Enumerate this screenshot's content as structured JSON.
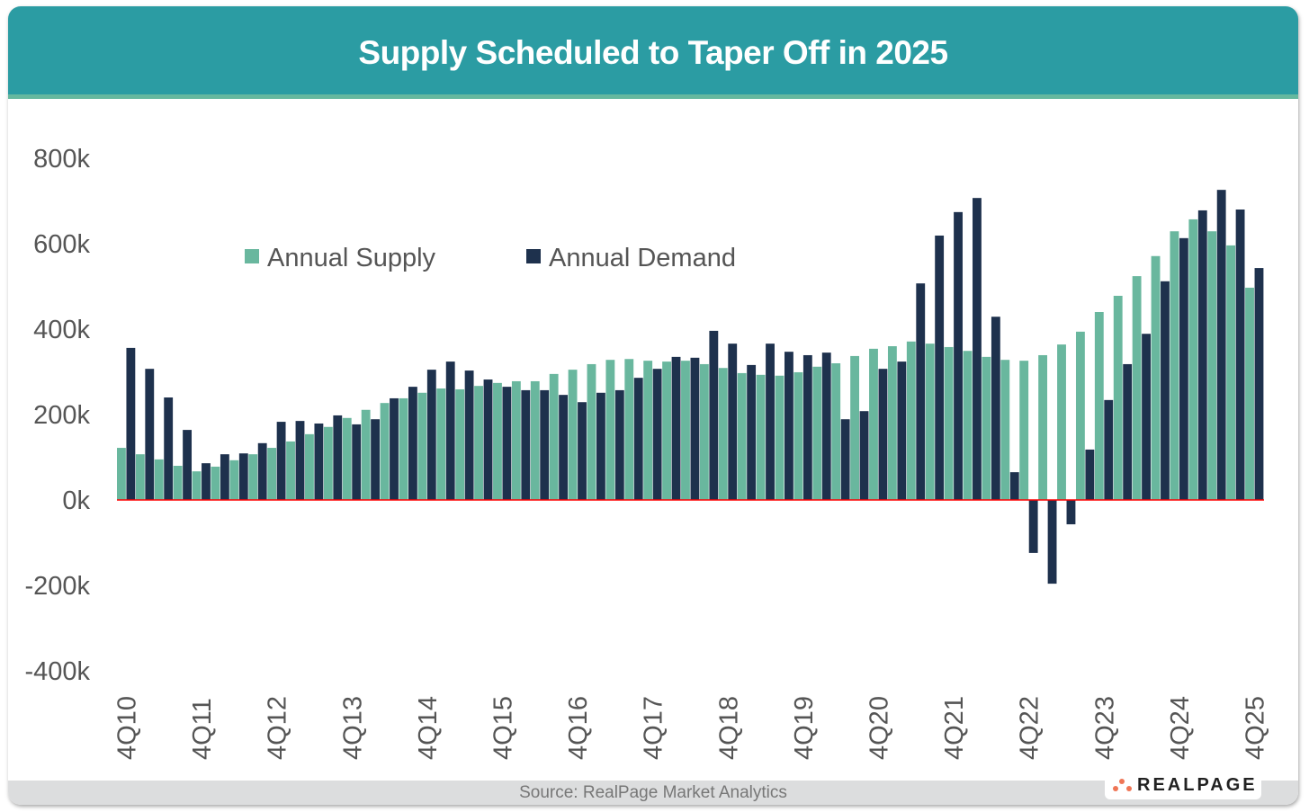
{
  "title": "Supply Scheduled to Taper Off in 2025",
  "source": "Source: RealPage Market Analytics",
  "logo_text": "REALPAGE",
  "colors": {
    "header": "#2B9CA3",
    "supply": "#69B79E",
    "demand": "#1E314D",
    "zero_line": "#FF0000"
  },
  "chart_data": {
    "type": "bar",
    "title": "Supply Scheduled to Taper Off in 2025",
    "xlabel": "",
    "ylabel": "",
    "ylim": [
      -400,
      800
    ],
    "yticks": [
      "800k",
      "600k",
      "400k",
      "200k",
      "0k",
      "-200k",
      "-400k"
    ],
    "ytick_values": [
      800,
      600,
      400,
      200,
      0,
      -200,
      -400
    ],
    "xtick_labels": [
      "4Q10",
      "4Q11",
      "4Q12",
      "4Q13",
      "4Q14",
      "4Q15",
      "4Q16",
      "4Q17",
      "4Q18",
      "4Q19",
      "4Q20",
      "4Q21",
      "4Q22",
      "4Q23",
      "4Q24",
      "4Q25"
    ],
    "categories": [
      "4Q10",
      "1Q11",
      "2Q11",
      "3Q11",
      "4Q11",
      "1Q12",
      "2Q12",
      "3Q12",
      "4Q12",
      "1Q13",
      "2Q13",
      "3Q13",
      "4Q13",
      "1Q14",
      "2Q14",
      "3Q14",
      "4Q14",
      "1Q15",
      "2Q15",
      "3Q15",
      "4Q15",
      "1Q16",
      "2Q16",
      "3Q16",
      "4Q16",
      "1Q17",
      "2Q17",
      "3Q17",
      "4Q17",
      "1Q18",
      "2Q18",
      "3Q18",
      "4Q18",
      "1Q19",
      "2Q19",
      "3Q19",
      "4Q19",
      "1Q20",
      "2Q20",
      "3Q20",
      "4Q20",
      "1Q21",
      "2Q21",
      "3Q21",
      "4Q21",
      "1Q22",
      "2Q22",
      "3Q22",
      "4Q22",
      "1Q23",
      "2Q23",
      "3Q23",
      "4Q23",
      "1Q24",
      "2Q24",
      "3Q24",
      "4Q24",
      "1Q25",
      "2Q25",
      "3Q25",
      "4Q25"
    ],
    "legend_position": "top-left",
    "grid": false,
    "series": [
      {
        "name": "Annual Supply",
        "values": [
          122,
          107,
          95,
          80,
          67,
          78,
          93,
          107,
          122,
          137,
          154,
          171,
          192,
          211,
          227,
          238,
          251,
          261,
          259,
          267,
          274,
          278,
          278,
          295,
          305,
          318,
          328,
          330,
          326,
          324,
          326,
          318,
          309,
          297,
          293,
          291,
          299,
          312,
          320,
          337,
          354,
          360,
          371,
          366,
          358,
          349,
          335,
          328,
          326,
          339,
          364,
          394,
          440,
          478,
          524,
          571,
          629,
          657,
          629,
          596,
          497
        ]
      },
      {
        "name": "Annual Demand",
        "values": [
          356,
          307,
          240,
          164,
          86,
          107,
          109,
          133,
          183,
          185,
          179,
          198,
          177,
          189,
          238,
          265,
          305,
          324,
          303,
          282,
          265,
          257,
          257,
          246,
          229,
          251,
          257,
          286,
          307,
          335,
          333,
          396,
          366,
          316,
          366,
          347,
          339,
          345,
          189,
          208,
          307,
          324,
          507,
          619,
          674,
          707,
          429,
          65,
          -124,
          -196,
          -57,
          118,
          234,
          318,
          389,
          512,
          613,
          678,
          726,
          680,
          543
        ]
      }
    ]
  }
}
